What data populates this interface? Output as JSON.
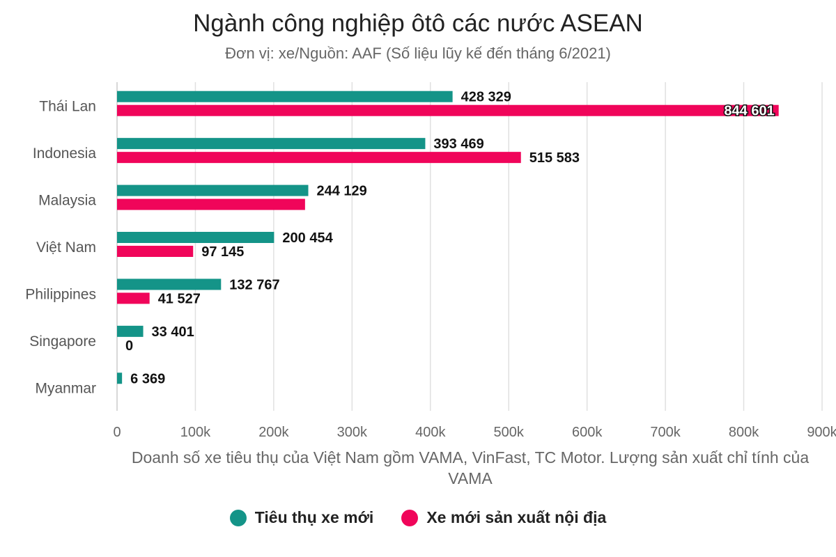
{
  "colors": {
    "consumption": "#149488",
    "production": "#f0055a",
    "grid": "#e0e0e0",
    "axis": "#cccccc"
  },
  "chart_data": {
    "type": "bar",
    "orientation": "horizontal",
    "title": "Ngành công nghiệp ôtô các nước ASEAN",
    "subtitle": "Đơn vị: xe/Nguồn: AAF (Số liệu lũy kế đến tháng 6/2021)",
    "xlabel": "Doanh số xe tiêu thụ của Việt Nam gồm VAMA, VinFast, TC Motor. Lượng sản xuất chỉ tính của VAMA",
    "ylabel": "",
    "categories": [
      "Thái Lan",
      "Indonesia",
      "Malaysia",
      "Việt Nam",
      "Philippines",
      "Singapore",
      "Myanmar"
    ],
    "xlim": [
      0,
      900000
    ],
    "xticks": [
      {
        "value": 0,
        "label": "0"
      },
      {
        "value": 100000,
        "label": "100k"
      },
      {
        "value": 200000,
        "label": "200k"
      },
      {
        "value": 300000,
        "label": "300k"
      },
      {
        "value": 400000,
        "label": "400k"
      },
      {
        "value": 500000,
        "label": "500k"
      },
      {
        "value": 600000,
        "label": "600k"
      },
      {
        "value": 700000,
        "label": "700k"
      },
      {
        "value": 800000,
        "label": "800k"
      },
      {
        "value": 900000,
        "label": "900k"
      }
    ],
    "grid": true,
    "legend_position": "bottom",
    "series": [
      {
        "name": "Tiêu thụ xe mới",
        "color": "#149488",
        "values": [
          428329,
          393469,
          244129,
          200454,
          132767,
          33401,
          6369
        ],
        "labels": [
          "428 329",
          "393 469",
          "244 129",
          "200 454",
          "132 767",
          "33 401",
          "6 369"
        ]
      },
      {
        "name": "Xe mới sản xuất nội địa",
        "color": "#f0055a",
        "values": [
          844601,
          515583,
          240000,
          97145,
          41527,
          0,
          null
        ],
        "labels": [
          "844 601",
          "515 583",
          "",
          "97 145",
          "41 527",
          "0",
          ""
        ]
      }
    ]
  }
}
